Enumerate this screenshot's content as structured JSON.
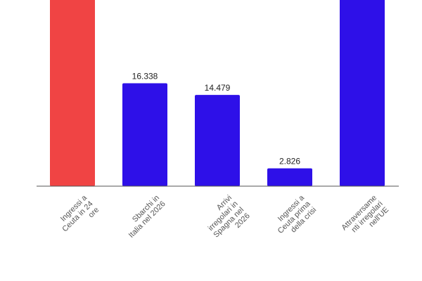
{
  "chart_data": {
    "type": "bar",
    "categories": [
      [
        "Ingressi a",
        "Ceuta in 24",
        "ore"
      ],
      [
        "Sbarchi in",
        "Italia nel 2026"
      ],
      [
        "Arrivi",
        "irregolari in",
        "Spagna nel",
        "2026"
      ],
      [
        "Ingressi a",
        "Ceuta prima",
        "della crisi"
      ],
      [
        "Attraversame",
        "nti irregolari",
        "nell'UE"
      ]
    ],
    "values": [
      null,
      16338,
      14479,
      2826,
      null
    ],
    "data_labels": [
      "",
      "16.338",
      "14.479",
      "2.826",
      ""
    ],
    "ylim": [
      0,
      34000
    ],
    "grid": false,
    "colors": [
      "#f04444",
      "#2e10e8",
      "#2e10e8",
      "#2e10e8",
      "#2e10e8"
    ],
    "axis_color": "#555555"
  }
}
